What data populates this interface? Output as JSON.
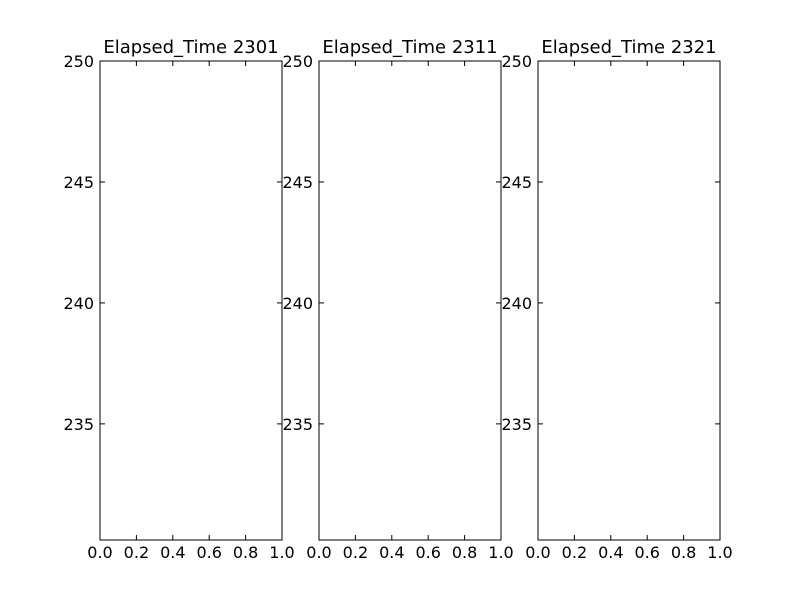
{
  "colors": {
    "background": "#ffffff",
    "axes_face": "#ffffff",
    "axes_edge": "#000000",
    "text": "#000000"
  },
  "chart_data": [
    {
      "type": "line",
      "title": "Elapsed_Time 2301",
      "xlabel": "",
      "ylabel": "",
      "xlim": [
        0.0,
        1.0
      ],
      "ylim": [
        230.2,
        250.0
      ],
      "xticks": [
        "0.0",
        "0.2",
        "0.4",
        "0.6",
        "0.8",
        "1.0"
      ],
      "xtick_values": [
        0.0,
        0.2,
        0.4,
        0.6,
        0.8,
        1.0
      ],
      "yticks": [
        "235",
        "240",
        "245",
        "250"
      ],
      "ytick_values": [
        235,
        240,
        245,
        250
      ],
      "grid": false,
      "series": []
    },
    {
      "type": "line",
      "title": "Elapsed_Time 2311",
      "xlabel": "",
      "ylabel": "",
      "xlim": [
        0.0,
        1.0
      ],
      "ylim": [
        230.2,
        250.0
      ],
      "xticks": [
        "0.0",
        "0.2",
        "0.4",
        "0.6",
        "0.8",
        "1.0"
      ],
      "xtick_values": [
        0.0,
        0.2,
        0.4,
        0.6,
        0.8,
        1.0
      ],
      "yticks": [
        "235",
        "240",
        "245",
        "250"
      ],
      "ytick_values": [
        235,
        240,
        245,
        250
      ],
      "grid": false,
      "series": []
    },
    {
      "type": "line",
      "title": "Elapsed_Time 2321",
      "xlabel": "",
      "ylabel": "",
      "xlim": [
        0.0,
        1.0
      ],
      "ylim": [
        230.2,
        250.0
      ],
      "xticks": [
        "0.0",
        "0.2",
        "0.4",
        "0.6",
        "0.8",
        "1.0"
      ],
      "xtick_values": [
        0.0,
        0.2,
        0.4,
        0.6,
        0.8,
        1.0
      ],
      "yticks": [
        "235",
        "240",
        "245",
        "250"
      ],
      "ytick_values": [
        235,
        240,
        245,
        250
      ],
      "grid": false,
      "series": []
    }
  ]
}
